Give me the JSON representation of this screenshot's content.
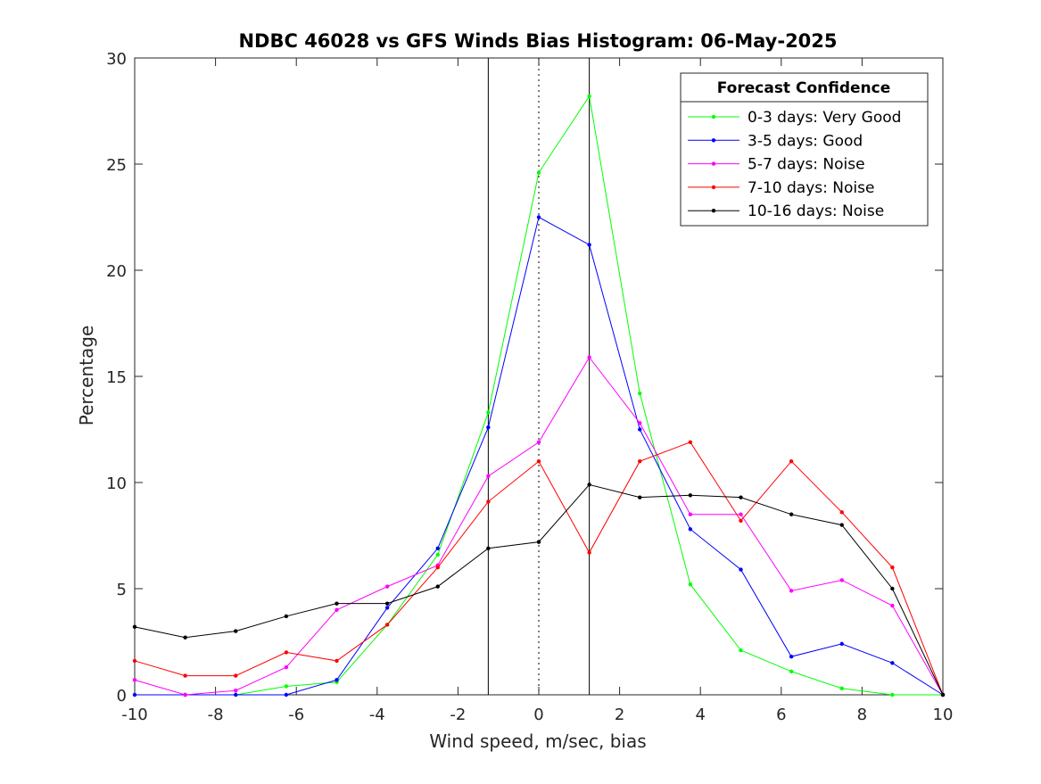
{
  "chart_data": {
    "type": "line",
    "title": "NDBC 46028 vs GFS Winds Bias Histogram: 06-May-2025",
    "xlabel": "Wind speed, m/sec, bias",
    "ylabel": "Percentage",
    "xlim": [
      -10,
      10
    ],
    "ylim": [
      0,
      30
    ],
    "xticks": [
      -10,
      -8,
      -6,
      -4,
      -2,
      0,
      2,
      4,
      6,
      8,
      10
    ],
    "yticks": [
      0,
      5,
      10,
      15,
      20,
      25,
      30
    ],
    "reference_lines": [
      -1.25,
      0,
      1.25
    ],
    "grid": false,
    "legend": {
      "title": "Forecast Confidence",
      "placement": "top-right"
    },
    "x": [
      -10,
      -8.75,
      -7.5,
      -6.25,
      -5,
      -3.75,
      -2.5,
      -1.25,
      0,
      1.25,
      2.5,
      3.75,
      5,
      6.25,
      7.5,
      8.75,
      10
    ],
    "series": [
      {
        "name": "0-3 days: Very Good",
        "color": "#00ff00",
        "values": [
          0,
          0,
          0,
          0.4,
          0.6,
          3.3,
          6.6,
          13.3,
          24.6,
          28.2,
          14.2,
          5.2,
          2.1,
          1.1,
          0.3,
          0,
          0
        ]
      },
      {
        "name": "3-5 days: Good",
        "color": "#0000ff",
        "values": [
          0,
          0,
          0,
          0,
          0.7,
          4.1,
          6.9,
          12.6,
          22.5,
          21.2,
          12.5,
          7.8,
          5.9,
          1.8,
          2.4,
          1.5,
          0
        ]
      },
      {
        "name": "5-7 days: Noise",
        "color": "#ff00ff",
        "values": [
          0.7,
          0,
          0.2,
          1.3,
          4.0,
          5.1,
          6.1,
          10.3,
          11.9,
          15.9,
          12.8,
          8.5,
          8.5,
          4.9,
          5.4,
          4.2,
          0
        ]
      },
      {
        "name": "7-10 days: Noise",
        "color": "#ff0000",
        "values": [
          1.6,
          0.9,
          0.9,
          2.0,
          1.6,
          3.3,
          6.0,
          9.1,
          11.0,
          6.7,
          11.0,
          11.9,
          8.2,
          11.0,
          8.6,
          6.0,
          0
        ]
      },
      {
        "name": "10-16 days: Noise",
        "color": "#000000",
        "values": [
          3.2,
          2.7,
          3.0,
          3.7,
          4.3,
          4.3,
          5.1,
          6.9,
          7.2,
          9.9,
          9.3,
          9.4,
          9.3,
          8.5,
          8.0,
          5.0,
          0
        ]
      }
    ]
  }
}
